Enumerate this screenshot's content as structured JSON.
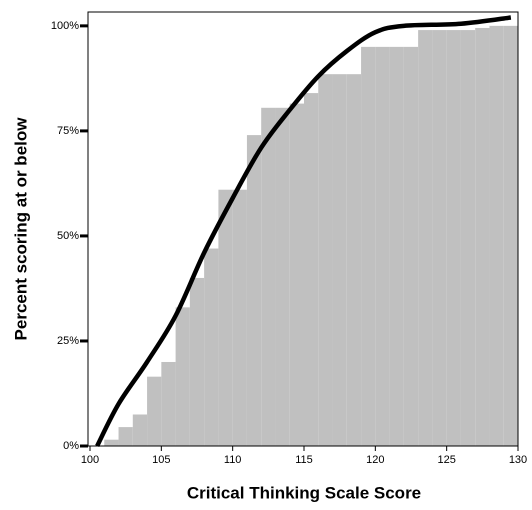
{
  "chart_data": {
    "type": "histogram",
    "xlabel": "Critical Thinking Scale Score",
    "ylabel": "Percent  scoring at or below",
    "bins": [
      100,
      101,
      102,
      103,
      104,
      105,
      106,
      107,
      108,
      109,
      110,
      111,
      112,
      113,
      114,
      115,
      116,
      117,
      118,
      119,
      120,
      121,
      122,
      123,
      124,
      125,
      126,
      127,
      128,
      129,
      130
    ],
    "values": [
      0,
      1.5,
      4.5,
      7.5,
      16.5,
      20,
      33,
      40,
      47,
      61,
      61,
      74,
      80.5,
      80.5,
      81.5,
      84,
      88.5,
      88.5,
      88.5,
      95,
      95,
      95,
      95,
      99,
      99,
      99,
      99,
      99.5,
      100,
      100
    ],
    "color": "#c0c0c0",
    "line": {
      "color": "#000000",
      "x": [
        100.5,
        102,
        104,
        106,
        108,
        110,
        112,
        114,
        116,
        118,
        120,
        122,
        126,
        129.5
      ],
      "values": [
        0,
        10,
        20,
        31,
        46,
        59,
        71,
        80,
        88,
        94,
        98.5,
        100,
        100.5,
        102
      ]
    },
    "xlim": [
      100,
      130
    ],
    "ylim": [
      0,
      103.3
    ],
    "xticks": [
      100,
      105,
      110,
      115,
      120,
      125,
      130
    ],
    "yticks": [
      {
        "value": 0,
        "label": "0%"
      },
      {
        "value": 25,
        "label": "25%"
      },
      {
        "value": 50,
        "label": "50%"
      },
      {
        "value": 75,
        "label": "75%"
      },
      {
        "value": 100,
        "label": "100%"
      }
    ]
  }
}
